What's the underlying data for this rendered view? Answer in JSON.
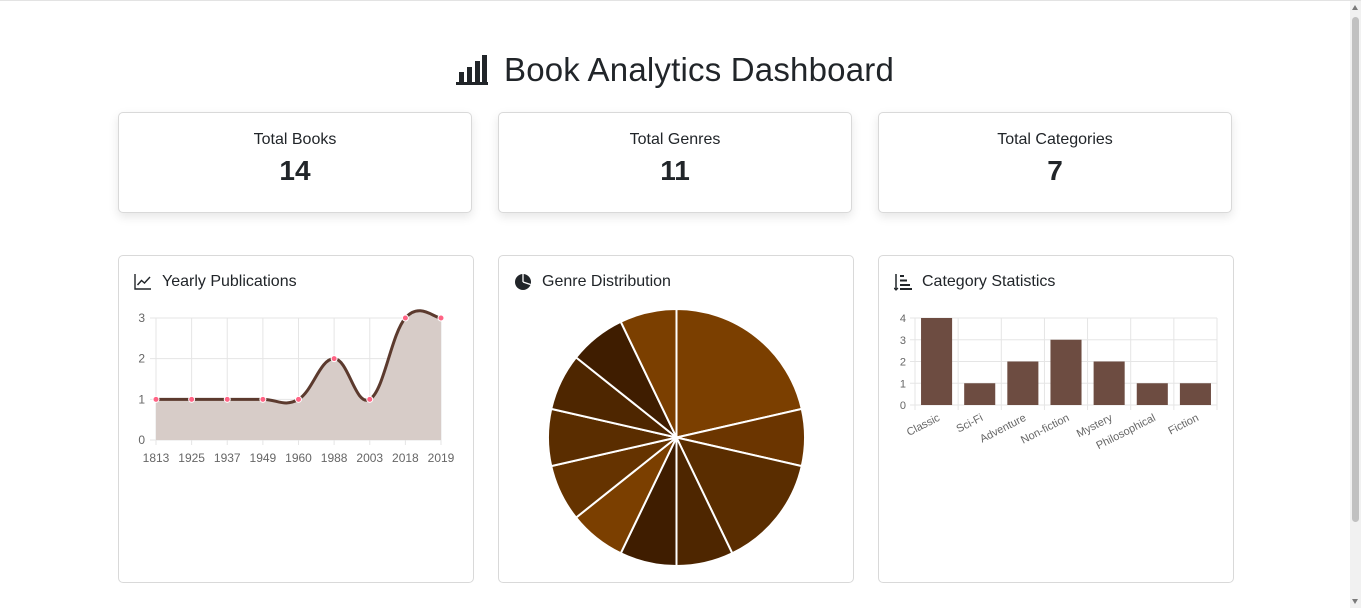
{
  "page": {
    "title": "Book Analytics Dashboard",
    "title_icon": "bar-chart-icon"
  },
  "stats": [
    {
      "label": "Total Books",
      "value": "14"
    },
    {
      "label": "Total Genres",
      "value": "11"
    },
    {
      "label": "Total Categories",
      "value": "7"
    }
  ],
  "panels": {
    "yearly": {
      "title": "Yearly Publications",
      "icon": "line-chart-icon"
    },
    "genre": {
      "title": "Genre Distribution",
      "icon": "pie-chart-icon"
    },
    "category": {
      "title": "Category Statistics",
      "icon": "sort-bars-icon"
    }
  },
  "colors": {
    "line": "#5c3a2e",
    "area": "#d7ccc8",
    "point": "#ff6384",
    "bar": "#6d4c41",
    "slice_border": "#ffffff"
  },
  "chart_data": [
    {
      "type": "line",
      "title": "Yearly Publications",
      "categories": [
        "1813",
        "1925",
        "1937",
        "1949",
        "1960",
        "1988",
        "2003",
        "2018",
        "2019"
      ],
      "values": [
        1,
        1,
        1,
        1,
        1,
        2,
        1,
        3,
        3
      ],
      "ylim": [
        0,
        3
      ],
      "yticks": [
        0,
        1,
        2,
        3
      ],
      "fill": true,
      "grid": true
    },
    {
      "type": "pie",
      "title": "Genre Distribution",
      "values": [
        3,
        1,
        2,
        1,
        1,
        1,
        1,
        1,
        1,
        1,
        1
      ],
      "colors": [
        "#7b3f00",
        "#6b3500",
        "#5a2d00",
        "#4e2600",
        "#3f1d00",
        "#7b3f00",
        "#653300",
        "#5a2d00",
        "#4e2600",
        "#3f1d00",
        "#7b3f00"
      ]
    },
    {
      "type": "bar",
      "title": "Category Statistics",
      "categories": [
        "Classic",
        "Sci-Fi",
        "Adventure",
        "Non-fiction",
        "Mystery",
        "Philosophical",
        "Fiction"
      ],
      "values": [
        4,
        1,
        2,
        3,
        2,
        1,
        1
      ],
      "ylim": [
        0,
        4
      ],
      "yticks": [
        0,
        1,
        2,
        3,
        4
      ],
      "grid": true
    }
  ]
}
